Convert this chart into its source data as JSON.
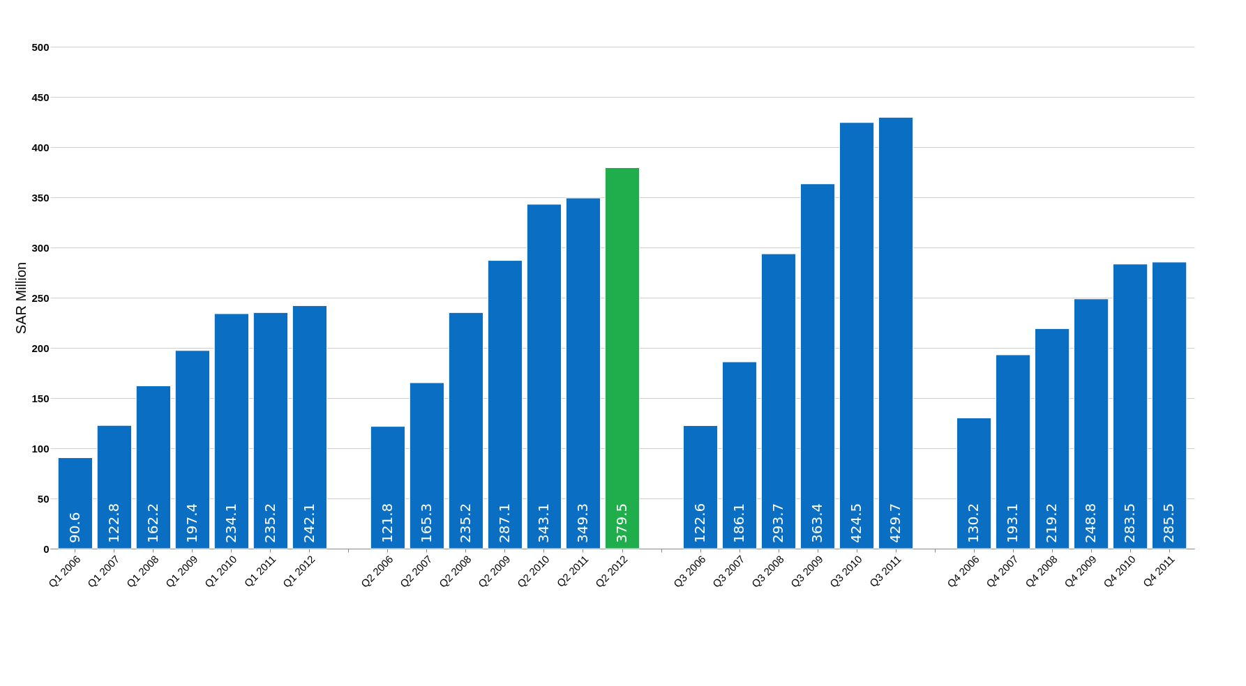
{
  "chart_data": {
    "type": "bar",
    "ylabel": "SAR Million",
    "categories": [
      "Q1 2006",
      "Q1 2007",
      "Q1 2008",
      "Q1 2009",
      "Q1 2010",
      "Q1 2011",
      "Q1 2012",
      null,
      "Q2 2006",
      "Q2 2007",
      "Q2 2008",
      "Q2 2009",
      "Q2 2010",
      "Q2 2011",
      "Q2 2012",
      null,
      "Q3 2006",
      "Q3 2007",
      "Q3 2008",
      "Q3 2009",
      "Q3 2010",
      "Q3 2011",
      null,
      "Q4 2006",
      "Q4 2007",
      "Q4 2008",
      "Q4 2009",
      "Q4 2010",
      "Q4 2011"
    ],
    "values": [
      90.6,
      122.8,
      162.2,
      197.4,
      234.1,
      235.2,
      242.1,
      null,
      121.8,
      165.3,
      235.2,
      287.1,
      343.1,
      349.3,
      379.5,
      null,
      122.6,
      186.1,
      293.7,
      363.4,
      424.5,
      429.7,
      null,
      130.2,
      193.1,
      219.2,
      248.8,
      283.5,
      285.5
    ],
    "colors": [
      "#0a6fc2",
      "#0a6fc2",
      "#0a6fc2",
      "#0a6fc2",
      "#0a6fc2",
      "#0a6fc2",
      "#0a6fc2",
      null,
      "#0a6fc2",
      "#0a6fc2",
      "#0a6fc2",
      "#0a6fc2",
      "#0a6fc2",
      "#0a6fc2",
      "#1fae4b",
      null,
      "#0a6fc2",
      "#0a6fc2",
      "#0a6fc2",
      "#0a6fc2",
      "#0a6fc2",
      "#0a6fc2",
      null,
      "#0a6fc2",
      "#0a6fc2",
      "#0a6fc2",
      "#0a6fc2",
      "#0a6fc2",
      "#0a6fc2"
    ],
    "ylim": [
      0,
      500
    ],
    "yticks": [
      0,
      50,
      100,
      150,
      200,
      250,
      300,
      350,
      400,
      450,
      500
    ],
    "grid": "y",
    "data_labels": true
  }
}
